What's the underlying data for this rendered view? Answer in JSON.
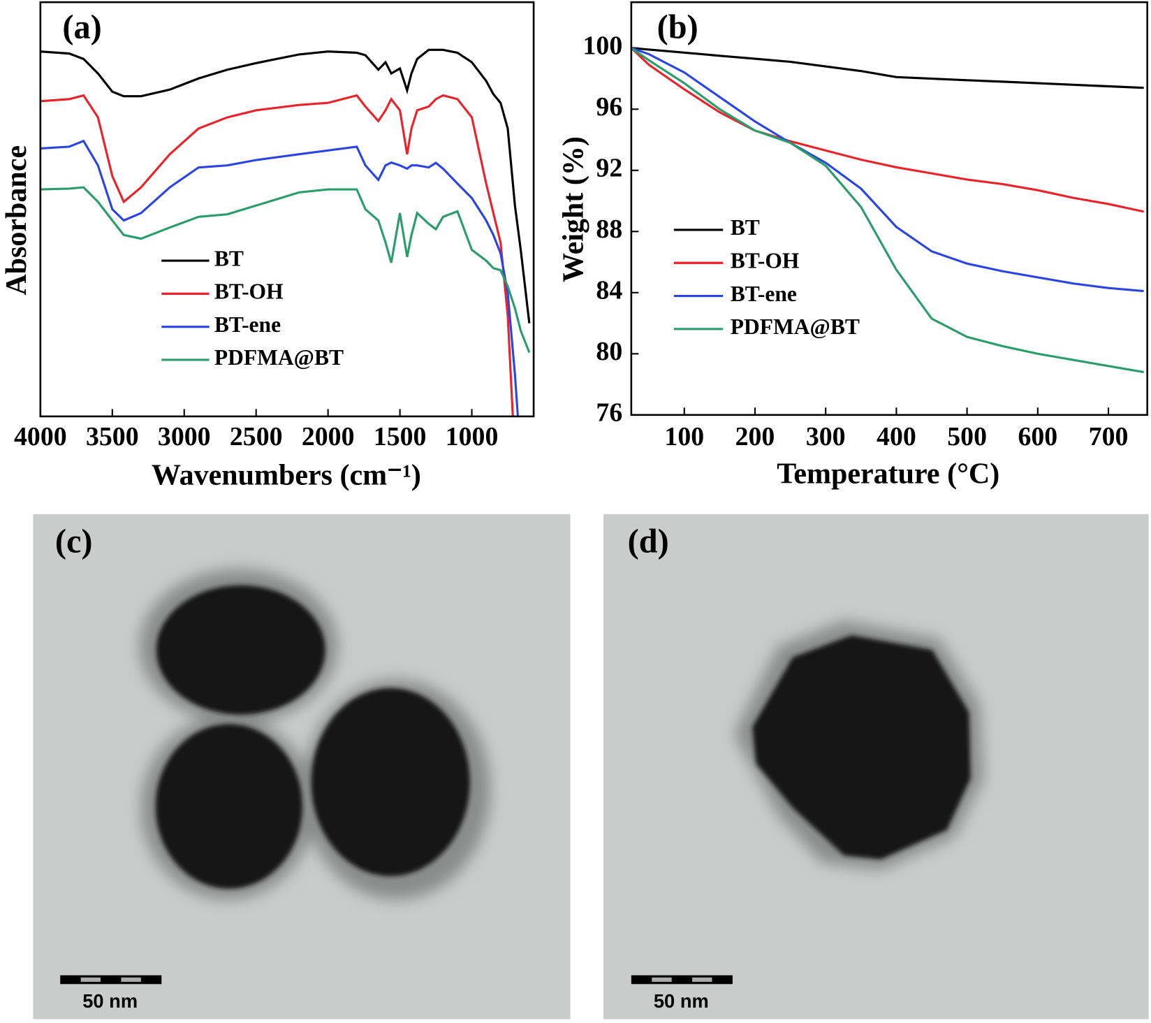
{
  "chart_data": [
    {
      "type": "line",
      "title": "(a)",
      "xlabel": "Wavenumbers (cm⁻¹)",
      "ylabel": "Absorbance",
      "xlim": [
        4000,
        570
      ],
      "ylim": [
        0,
        100
      ],
      "xticks": [
        4000,
        3500,
        3000,
        2500,
        2000,
        1500,
        1000
      ],
      "x": [
        4000,
        3800,
        3700,
        3600,
        3500,
        3420,
        3300,
        3100,
        2900,
        2700,
        2500,
        2200,
        2000,
        1800,
        1740,
        1650,
        1600,
        1560,
        1500,
        1450,
        1420,
        1380,
        1300,
        1250,
        1200,
        1100,
        1000,
        900,
        850,
        800,
        750,
        700,
        660,
        600
      ],
      "series": [
        {
          "name": "BT",
          "color": "#000000",
          "values": [
            88.1,
            87.6,
            86.3,
            82.8,
            78.4,
            77.3,
            77.3,
            78.9,
            81.6,
            83.7,
            85.3,
            87.4,
            88.1,
            87.8,
            87.2,
            83.7,
            85.5,
            82.8,
            84.0,
            78.7,
            82.8,
            86.3,
            88.5,
            88.5,
            88.5,
            87.8,
            85.5,
            81.0,
            77.8,
            75.7,
            69.5,
            50.9,
            40.2,
            22.5
          ]
        },
        {
          "name": "BT-OH",
          "color": "#e8232a",
          "values": [
            76.1,
            76.6,
            77.5,
            72.2,
            58.0,
            51.8,
            55.3,
            63.3,
            69.5,
            72.2,
            73.9,
            75.2,
            75.7,
            77.5,
            74.8,
            71.3,
            73.9,
            76.6,
            73.9,
            63.3,
            69.5,
            73.9,
            74.8,
            76.6,
            77.5,
            76.6,
            72.2,
            56.2,
            49.1,
            42.0,
            24.3,
            -10,
            null,
            null
          ]
        },
        {
          "name": "BT-ene",
          "color": "#2b45e0",
          "values": [
            64.7,
            65.1,
            66.5,
            60.6,
            50.0,
            47.3,
            49.1,
            55.3,
            60.1,
            60.6,
            61.9,
            63.3,
            64.2,
            65.1,
            60.6,
            57.1,
            60.6,
            61.3,
            60.6,
            59.8,
            60.6,
            60.6,
            60.1,
            61.2,
            59.8,
            56.2,
            52.7,
            47.3,
            43.8,
            39.4,
            29.8,
            10.1,
            -10,
            null
          ]
        },
        {
          "name": "PDFMA@BT",
          "color": "#2a9d6a",
          "values": [
            54.8,
            55.0,
            55.3,
            51.8,
            47.3,
            43.8,
            42.9,
            45.6,
            48.2,
            48.8,
            50.9,
            54.1,
            54.8,
            54.8,
            50.0,
            47.3,
            42.0,
            37.1,
            49.1,
            38.5,
            43.8,
            49.1,
            46.5,
            45.2,
            48.2,
            49.5,
            40.2,
            37.6,
            35.8,
            35.3,
            31.4,
            26.1,
            20.7,
            15.4
          ]
        }
      ]
    },
    {
      "type": "line",
      "title": "(b)",
      "xlabel": "Temperature (°C)",
      "ylabel": "Weight (%)",
      "xlim": [
        25,
        755
      ],
      "ylim": [
        76,
        103
      ],
      "xticks": [
        100,
        200,
        300,
        400,
        500,
        600,
        700
      ],
      "yticks": [
        76,
        80,
        84,
        88,
        92,
        96,
        100
      ],
      "x": [
        25,
        50,
        100,
        150,
        200,
        250,
        300,
        350,
        400,
        450,
        500,
        550,
        600,
        650,
        700,
        750
      ],
      "series": [
        {
          "name": "BT",
          "color": "#000000",
          "values": [
            100,
            99.9,
            99.7,
            99.5,
            99.3,
            99.1,
            98.8,
            98.5,
            98.1,
            98.0,
            97.9,
            97.8,
            97.7,
            97.6,
            97.5,
            97.4
          ]
        },
        {
          "name": "BT-OH",
          "color": "#e8232a",
          "values": [
            100,
            98.9,
            97.3,
            95.8,
            94.6,
            93.9,
            93.3,
            92.7,
            92.2,
            91.8,
            91.4,
            91.1,
            90.7,
            90.2,
            89.8,
            89.3
          ]
        },
        {
          "name": "BT-ene",
          "color": "#2b45e0",
          "values": [
            100,
            99.6,
            98.4,
            96.8,
            95.2,
            93.8,
            92.5,
            90.8,
            88.3,
            86.7,
            85.9,
            85.4,
            85.0,
            84.6,
            84.3,
            84.1
          ]
        },
        {
          "name": "PDFMA@BT",
          "color": "#2a9d6a",
          "values": [
            100,
            99.2,
            97.7,
            96.0,
            94.6,
            93.8,
            92.3,
            89.6,
            85.5,
            82.3,
            81.1,
            80.5,
            80.0,
            79.6,
            79.2,
            78.8
          ]
        }
      ]
    }
  ],
  "images": [
    {
      "label": "(c)",
      "scale_bar": "50 nm"
    },
    {
      "label": "(d)",
      "scale_bar": "50 nm"
    }
  ]
}
